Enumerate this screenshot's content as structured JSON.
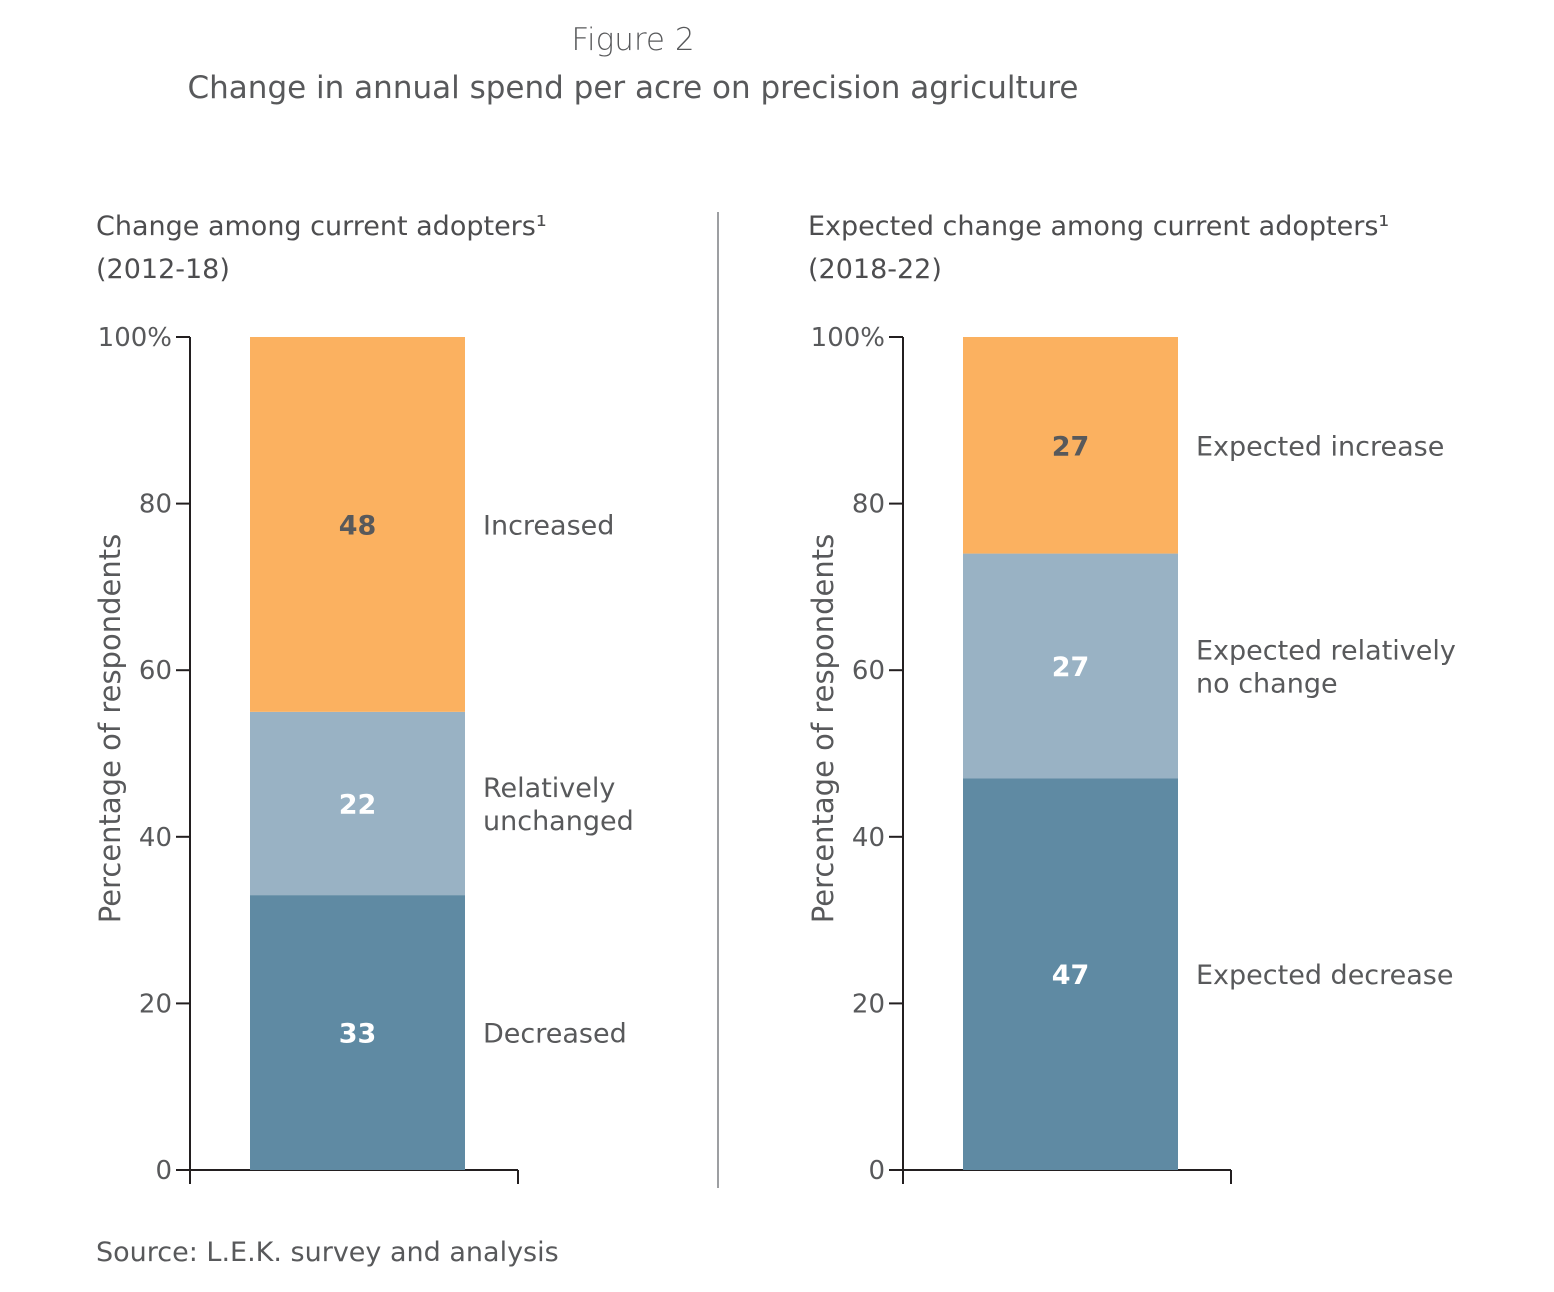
{
  "figure_label": "Figure 2",
  "title": "Change in annual spend per acre on precision agriculture",
  "source": "Source: L.E.K. survey and analysis",
  "colors": {
    "increase": "#FBB160",
    "unchanged": "#99B2C4",
    "decrease": "#5F8AA3",
    "axis": "#231F20",
    "text": "#58595B"
  },
  "chart_data": [
    {
      "type": "bar",
      "stacked": true,
      "title": "Change among current adopters¹",
      "subtitle": "(2012-18)",
      "ylabel": "Percentage of respondents",
      "ylim": [
        0,
        100
      ],
      "yticks": [
        "0",
        "20",
        "40",
        "60",
        "80",
        "100%"
      ],
      "series": [
        {
          "name": "Decreased",
          "value": 33,
          "color": "#5F8AA3",
          "label_color": "#FFFFFF"
        },
        {
          "name": "Relatively unchanged",
          "name_lines": [
            "Relatively",
            "unchanged"
          ],
          "value": 22,
          "color": "#99B2C4",
          "label_color": "#FFFFFF"
        },
        {
          "name": "Increased",
          "value": 48,
          "color": "#FBB160",
          "label_color": "#58595B"
        }
      ]
    },
    {
      "type": "bar",
      "stacked": true,
      "title": "Expected change among current adopters¹",
      "subtitle": "(2018-22)",
      "ylabel": "Percentage of respondents",
      "ylim": [
        0,
        100
      ],
      "yticks": [
        "0",
        "20",
        "40",
        "60",
        "80",
        "100%"
      ],
      "series": [
        {
          "name": "Expected decrease",
          "value": 47,
          "color": "#5F8AA3",
          "label_color": "#FFFFFF"
        },
        {
          "name": "Expected relatively no change",
          "name_lines": [
            "Expected relatively",
            "no change"
          ],
          "value": 27,
          "color": "#99B2C4",
          "label_color": "#FFFFFF"
        },
        {
          "name": "Expected increase",
          "value": 27,
          "color": "#FBB160",
          "label_color": "#58595B"
        }
      ]
    }
  ]
}
